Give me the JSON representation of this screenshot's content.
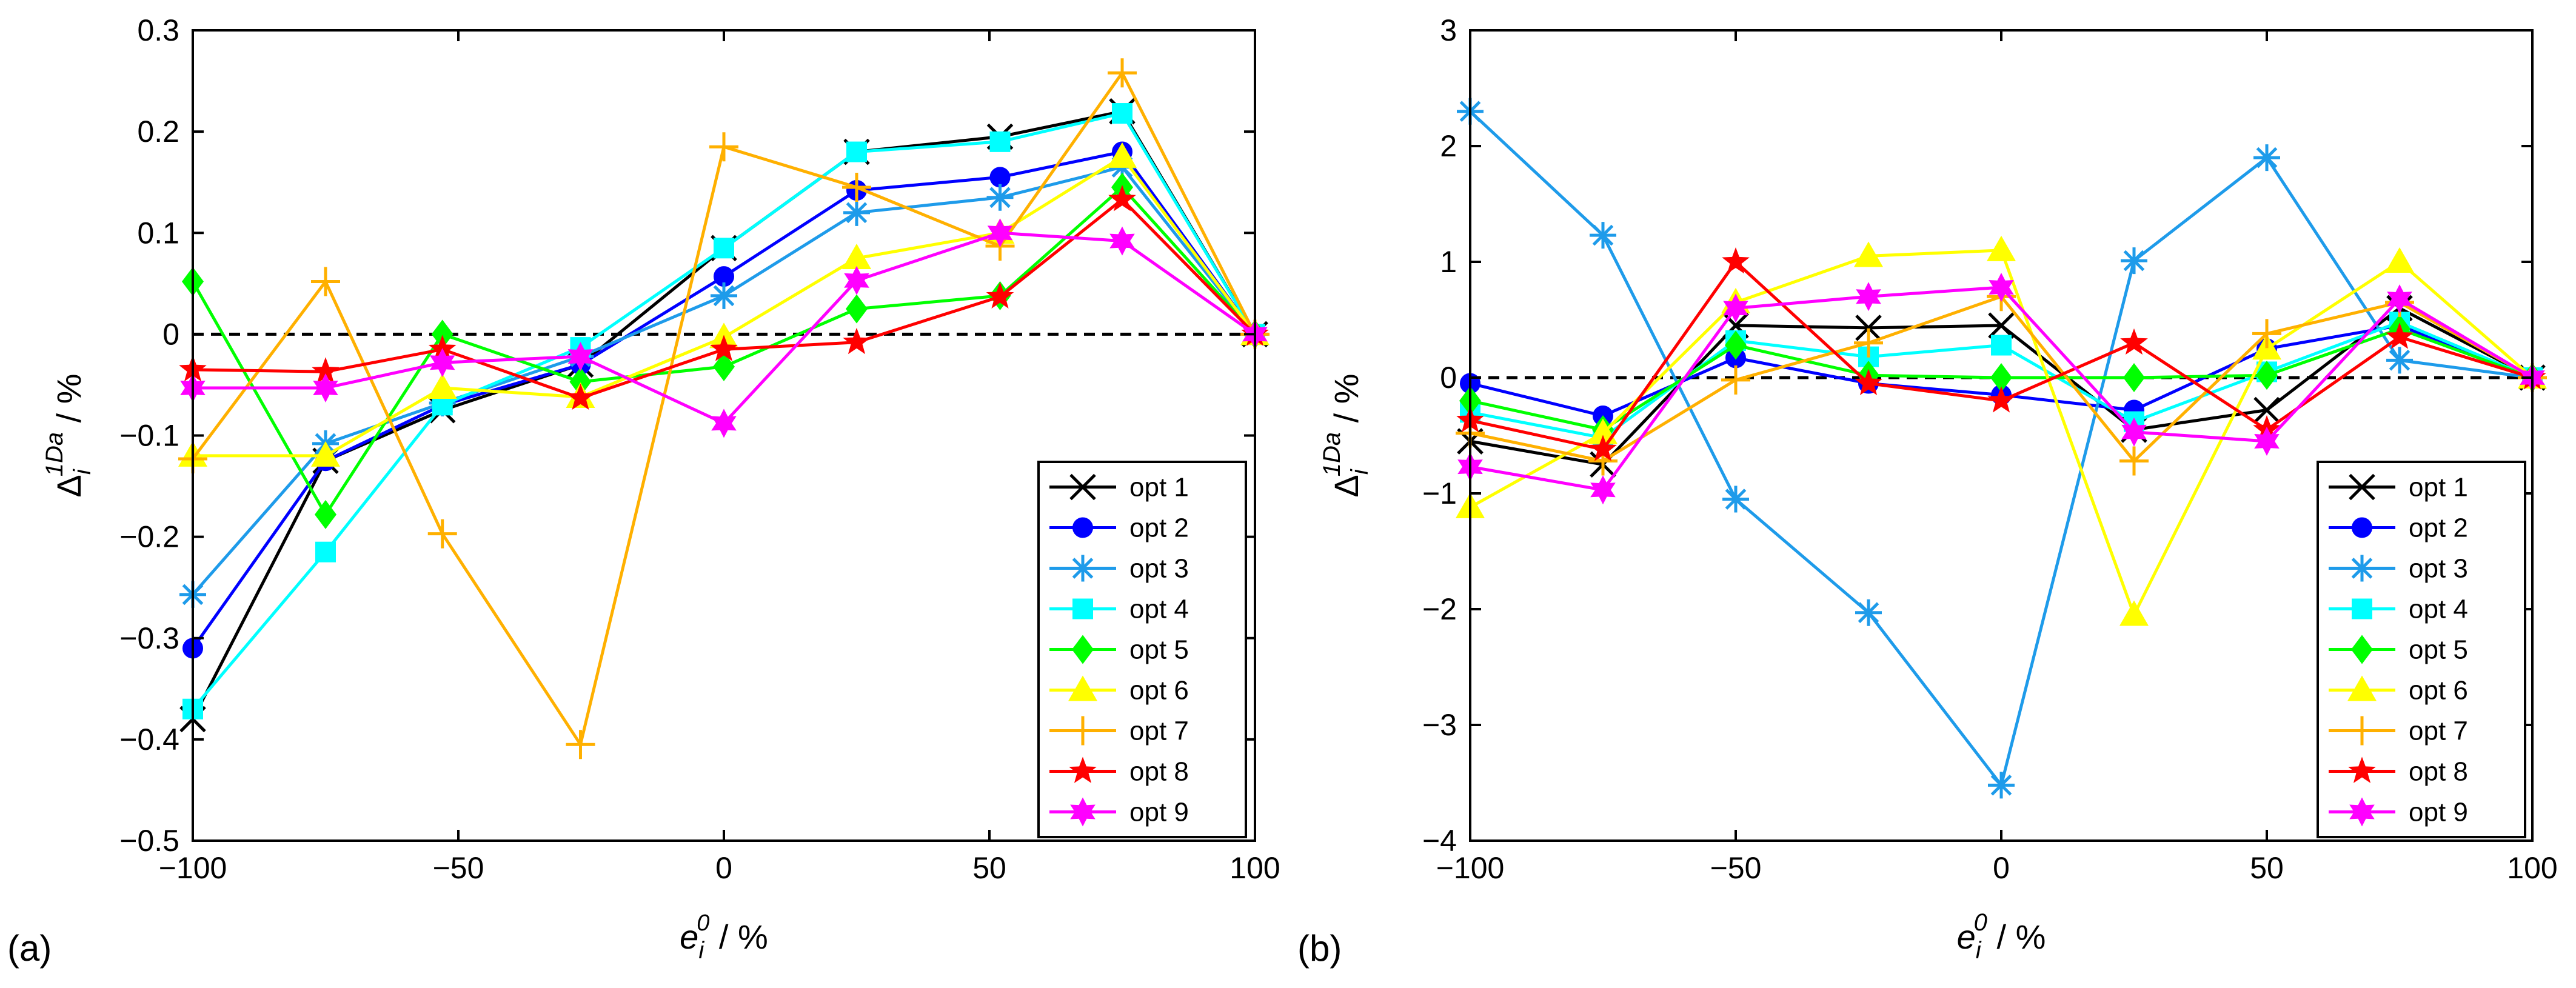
{
  "figure": {
    "background": "#ffffff"
  },
  "panels": [
    {
      "label": "(a)"
    },
    {
      "label": "(b)"
    }
  ],
  "chart_data": [
    {
      "type": "line",
      "panel": "(a)",
      "xlabel": {
        "main": "e",
        "sup": "0",
        "sub": "i",
        "unit": " / %"
      },
      "ylabel": {
        "main": "Δ",
        "sup": "1Da",
        "sub": "i",
        "unit": " / %"
      },
      "xlim": [
        -100,
        100
      ],
      "ylim": [
        -0.5,
        0.3
      ],
      "xticks": [
        -100,
        -50,
        0,
        50,
        100
      ],
      "xtick_labels": [
        "−100",
        "−50",
        "0",
        "50",
        "100"
      ],
      "yticks": [
        -0.5,
        -0.4,
        -0.3,
        -0.2,
        -0.1,
        0,
        0.1,
        0.2,
        0.3
      ],
      "ytick_labels": [
        "−0.5",
        "−0.4",
        "−0.3",
        "−0.2",
        "−0.1",
        "0",
        "0.1",
        "0.2",
        "0.3"
      ],
      "reference_line": {
        "y": 0,
        "style": "dashed"
      },
      "legend_position": "bottom-right",
      "series": [
        {
          "name": "opt 1",
          "color": "#000000",
          "marker": "x",
          "x": [
            -100,
            -75,
            -53,
            -27,
            0,
            25,
            52,
            75,
            100
          ],
          "y": [
            -0.38,
            -0.125,
            -0.075,
            -0.03,
            0.085,
            0.18,
            0.195,
            0.22,
            0
          ]
        },
        {
          "name": "opt 2",
          "color": "#0000ff",
          "marker": "circle",
          "x": [
            -100,
            -75,
            -53,
            -27,
            0,
            25,
            52,
            75,
            100
          ],
          "y": [
            -0.31,
            -0.125,
            -0.07,
            -0.03,
            0.057,
            0.142,
            0.155,
            0.18,
            0
          ]
        },
        {
          "name": "opt 3",
          "color": "#1e9bea",
          "marker": "asterisk",
          "x": [
            -100,
            -75,
            -53,
            -27,
            0,
            25,
            52,
            75,
            100
          ],
          "y": [
            -0.257,
            -0.108,
            -0.068,
            -0.022,
            0.038,
            0.12,
            0.135,
            0.165,
            0
          ]
        },
        {
          "name": "opt 4",
          "color": "#00ffff",
          "marker": "square",
          "x": [
            -100,
            -75,
            -53,
            -27,
            0,
            25,
            52,
            75,
            100
          ],
          "y": [
            -0.37,
            -0.215,
            -0.07,
            -0.013,
            0.085,
            0.18,
            0.19,
            0.218,
            0
          ]
        },
        {
          "name": "opt 5",
          "color": "#00ff00",
          "marker": "diamond",
          "x": [
            -100,
            -75,
            -53,
            -27,
            0,
            25,
            52,
            75,
            100
          ],
          "y": [
            0.052,
            -0.178,
            0,
            -0.047,
            -0.032,
            0.025,
            0.038,
            0.145,
            0
          ]
        },
        {
          "name": "opt 6",
          "color": "#ffff00",
          "marker": "triangle",
          "x": [
            -100,
            -75,
            -53,
            -27,
            0,
            25,
            52,
            75,
            100
          ],
          "y": [
            -0.12,
            -0.12,
            -0.053,
            -0.062,
            -0.003,
            0.075,
            0.1,
            0.175,
            0
          ]
        },
        {
          "name": "opt 7",
          "color": "#ffb000",
          "marker": "plus",
          "x": [
            -100,
            -75,
            -53,
            -27,
            0,
            25,
            52,
            75,
            100
          ],
          "y": [
            -0.123,
            0.052,
            -0.197,
            -0.405,
            0.185,
            0.145,
            0.087,
            0.258,
            0
          ]
        },
        {
          "name": "opt 8",
          "color": "#ff0000",
          "marker": "star",
          "x": [
            -100,
            -75,
            -53,
            -27,
            0,
            25,
            52,
            75,
            100
          ],
          "y": [
            -0.035,
            -0.037,
            -0.015,
            -0.063,
            -0.015,
            -0.008,
            0.037,
            0.133,
            0
          ]
        },
        {
          "name": "opt 9",
          "color": "#ff00ff",
          "marker": "hexagram",
          "x": [
            -100,
            -75,
            -53,
            -27,
            0,
            25,
            52,
            75,
            100
          ],
          "y": [
            -0.053,
            -0.053,
            -0.028,
            -0.022,
            -0.088,
            0.053,
            0.1,
            0.092,
            0
          ]
        }
      ]
    },
    {
      "type": "line",
      "panel": "(b)",
      "xlabel": {
        "main": "e",
        "sup": "0",
        "sub": "i",
        "unit": " / %"
      },
      "ylabel": {
        "main": "Δ",
        "sup": "1Da",
        "sub": "i",
        "unit": " / %"
      },
      "xlim": [
        -100,
        100
      ],
      "ylim": [
        -4,
        3
      ],
      "xticks": [
        -100,
        -50,
        0,
        50,
        100
      ],
      "xtick_labels": [
        "−100",
        "−50",
        "0",
        "50",
        "100"
      ],
      "yticks": [
        -4,
        -3,
        -2,
        -1,
        0,
        1,
        2,
        3
      ],
      "ytick_labels": [
        "−4",
        "−3",
        "−2",
        "−1",
        "0",
        "1",
        "2",
        "3"
      ],
      "reference_line": {
        "y": 0,
        "style": "dashed"
      },
      "legend_position": "bottom-right",
      "series": [
        {
          "name": "opt 1",
          "color": "#000000",
          "marker": "x",
          "x": [
            -100,
            -75,
            -50,
            -25,
            0,
            25,
            50,
            75,
            100
          ],
          "y": [
            -0.55,
            -0.75,
            0.45,
            0.43,
            0.45,
            -0.45,
            -0.28,
            0.6,
            0
          ]
        },
        {
          "name": "opt 2",
          "color": "#0000ff",
          "marker": "circle",
          "x": [
            -100,
            -75,
            -50,
            -25,
            0,
            25,
            50,
            75,
            100
          ],
          "y": [
            -0.05,
            -0.33,
            0.17,
            -0.05,
            -0.15,
            -0.28,
            0.25,
            0.45,
            0
          ]
        },
        {
          "name": "opt 3",
          "color": "#1e9bea",
          "marker": "asterisk",
          "x": [
            -100,
            -75,
            -50,
            -25,
            0,
            25,
            50,
            75,
            100
          ],
          "y": [
            2.3,
            1.23,
            -1.05,
            -2.03,
            -3.52,
            1.01,
            1.9,
            0.15,
            0
          ]
        },
        {
          "name": "opt 4",
          "color": "#00ffff",
          "marker": "square",
          "x": [
            -100,
            -75,
            -50,
            -25,
            0,
            25,
            50,
            75,
            100
          ],
          "y": [
            -0.3,
            -0.52,
            0.32,
            0.18,
            0.28,
            -0.38,
            0.05,
            0.48,
            0
          ]
        },
        {
          "name": "opt 5",
          "color": "#00ff00",
          "marker": "diamond",
          "x": [
            -100,
            -75,
            -50,
            -25,
            0,
            25,
            50,
            75,
            100
          ],
          "y": [
            -0.2,
            -0.45,
            0.28,
            0.02,
            0.0,
            0.0,
            0.02,
            0.42,
            0
          ]
        },
        {
          "name": "opt 6",
          "color": "#ffff00",
          "marker": "triangle",
          "x": [
            -100,
            -75,
            -50,
            -25,
            0,
            25,
            50,
            75,
            100
          ],
          "y": [
            -1.12,
            -0.48,
            0.65,
            1.05,
            1.1,
            -2.05,
            0.25,
            1.0,
            0
          ]
        },
        {
          "name": "opt 7",
          "color": "#ffb000",
          "marker": "plus",
          "x": [
            -100,
            -75,
            -50,
            -25,
            0,
            25,
            50,
            75,
            100
          ],
          "y": [
            -0.48,
            -0.72,
            -0.02,
            0.3,
            0.7,
            -0.72,
            0.38,
            0.65,
            0
          ]
        },
        {
          "name": "opt 8",
          "color": "#ff0000",
          "marker": "star",
          "x": [
            -100,
            -75,
            -50,
            -25,
            0,
            25,
            50,
            75,
            100
          ],
          "y": [
            -0.37,
            -0.62,
            1.0,
            -0.05,
            -0.2,
            0.3,
            -0.45,
            0.35,
            0
          ]
        },
        {
          "name": "opt 9",
          "color": "#ff00ff",
          "marker": "hexagram",
          "x": [
            -100,
            -75,
            -50,
            -25,
            0,
            25,
            50,
            75,
            100
          ],
          "y": [
            -0.77,
            -0.97,
            0.6,
            0.7,
            0.78,
            -0.47,
            -0.55,
            0.68,
            0
          ]
        }
      ]
    }
  ]
}
